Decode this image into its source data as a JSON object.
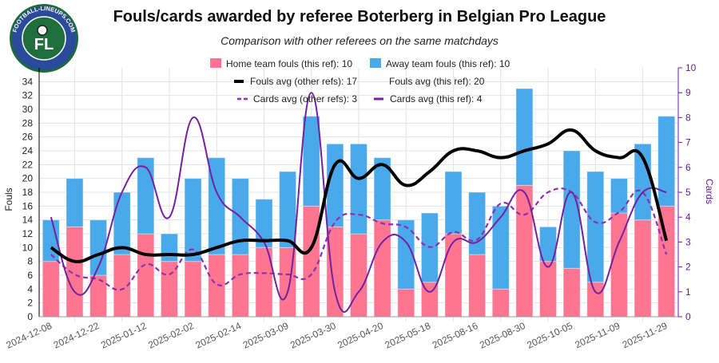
{
  "logo": {
    "text": "FOOTBALL-LINEUPS.COM",
    "monogram": "FL"
  },
  "chart_data": {
    "type": "bar",
    "title": "Fouls/cards awarded by referee Boterberg in Belgian Pro League",
    "subtitle": "Comparison with other referees on the same matchdays",
    "ylabel": "Fouls",
    "y2label": "Cards",
    "ylim": [
      0,
      36
    ],
    "y2lim": [
      0,
      10
    ],
    "yticks": [
      0,
      2,
      4,
      6,
      8,
      10,
      12,
      14,
      16,
      18,
      20,
      22,
      24,
      26,
      28,
      30,
      32,
      34
    ],
    "y2ticks": [
      0,
      1,
      2,
      3,
      4,
      5,
      6,
      7,
      8,
      9,
      10
    ],
    "grid": true,
    "legend_placement": "top",
    "tick_labels": [
      "2024-12-08",
      "2024-12-22",
      "2025-01-12",
      "2025-02-02",
      "2025-02-14",
      "2025-03-09",
      "2025-03-30",
      "2025-04-20",
      "2025-05-18",
      "2025-08-16",
      "2025-08-30",
      "2025-10-05",
      "2025-11-09",
      "2025-11-29"
    ],
    "series": [
      {
        "name": "Home team fouls (this ref): 10",
        "type": "bar",
        "stacked": true,
        "axis": "left",
        "color": "#fe7591",
        "values": [
          8,
          13,
          6,
          9,
          12,
          8,
          8,
          9,
          9,
          10,
          10,
          16,
          13,
          12,
          14,
          4,
          5,
          12,
          9,
          4,
          19,
          8,
          7,
          5,
          15,
          14,
          16
        ]
      },
      {
        "name": "Away team fouls (this ref): 10",
        "type": "bar",
        "stacked": true,
        "axis": "left",
        "color": "#4aa9ea",
        "values": [
          6,
          7,
          8,
          9,
          11,
          4,
          12,
          14,
          11,
          7,
          11,
          13,
          12,
          13,
          9,
          10,
          10,
          9,
          9,
          12,
          14,
          5,
          17,
          16,
          5,
          11,
          13
        ]
      },
      {
        "name": "Fouls avg (other refs): 17",
        "type": "line",
        "axis": "left",
        "color": "#000000",
        "values": [
          10,
          8,
          9,
          10,
          9,
          9,
          9,
          10,
          11,
          11,
          11,
          10,
          22,
          20,
          22,
          19,
          21,
          24,
          24,
          23,
          24,
          25,
          27,
          24,
          23,
          23,
          11
        ]
      },
      {
        "name": "Fouls avg (this ref): 20",
        "type": "line",
        "axis": "left",
        "hidden": true
      },
      {
        "name": "Cards avg (other refs): 3",
        "type": "line",
        "style": "dashed",
        "axis": "right",
        "color": "#8e2fae",
        "values": [
          2.5,
          1.7,
          1.5,
          1.1,
          2.1,
          1.7,
          2.7,
          1.3,
          1.7,
          1.75,
          1.7,
          1.7,
          3.8,
          4.1,
          3.75,
          3.6,
          2.8,
          3.4,
          3.1,
          4.55,
          4.1,
          5,
          5,
          3.8,
          4.2,
          5,
          2.5
        ]
      },
      {
        "name": "Cards avg (this ref): 4",
        "type": "line",
        "axis": "right",
        "color": "#7420a0",
        "values": [
          4,
          1,
          2,
          5,
          6,
          4,
          8,
          5,
          4,
          3,
          1,
          9,
          1,
          1,
          3,
          3,
          1,
          3,
          3,
          4,
          5,
          2,
          5,
          1,
          3,
          5,
          5
        ]
      }
    ]
  }
}
